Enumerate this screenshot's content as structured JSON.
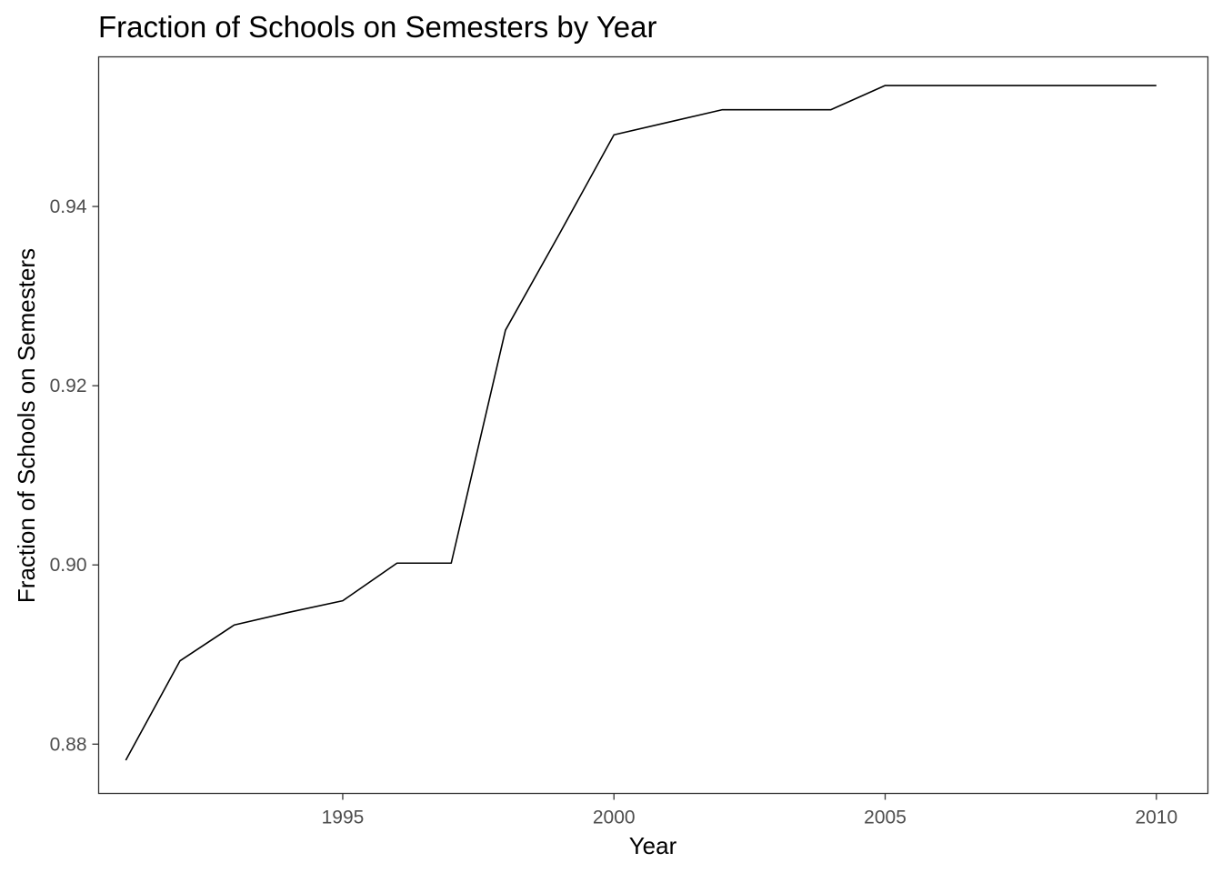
{
  "chart_data": {
    "type": "line",
    "title": "Fraction of Schools on Semesters by Year",
    "xlabel": "Year",
    "ylabel": "Fraction of Schools on Semesters",
    "xlim": [
      1990.5,
      2010.95
    ],
    "ylim": [
      0.8745,
      0.9567
    ],
    "x_ticks": [
      1995,
      2000,
      2005,
      2010
    ],
    "x_tick_labels": [
      "1995",
      "2000",
      "2005",
      "2010"
    ],
    "y_ticks": [
      0.88,
      0.9,
      0.92,
      0.94
    ],
    "y_tick_labels": [
      "0.88",
      "0.90",
      "0.92",
      "0.94"
    ],
    "grid": false,
    "line_color": "#000000",
    "series": [
      {
        "x": [
          1991,
          1992,
          1993,
          1994,
          1995,
          1996,
          1997,
          1998,
          1999,
          2000,
          2001,
          2002,
          2003,
          2004,
          2005,
          2006,
          2007,
          2008,
          2009,
          2010
        ],
        "values": [
          0.8782,
          0.8893,
          0.8933,
          0.8947,
          0.896,
          0.9002,
          0.9002,
          0.9262,
          0.937,
          0.948,
          0.9494,
          0.9508,
          0.9508,
          0.9508,
          0.9535,
          0.9535,
          0.9535,
          0.9535,
          0.9535,
          0.9535
        ]
      }
    ]
  }
}
